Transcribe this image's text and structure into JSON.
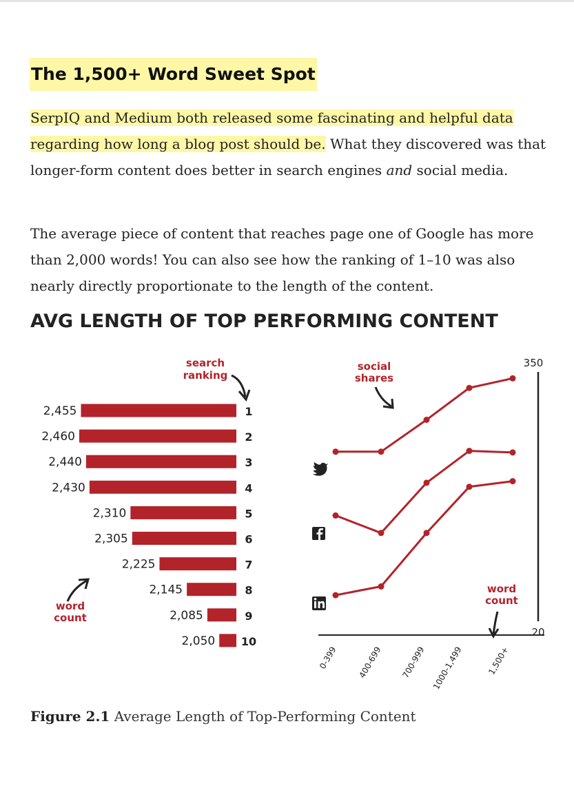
{
  "article": {
    "heading": "The 1,500+ Word Sweet Spot",
    "p1_highlight": "SerpIQ and Medium both released some fascinating and helpful data regarding how long a blog post should be.",
    "p1_rest_a": " What they discovered was that longer-form content does better in search engines ",
    "p1_em": "and",
    "p1_rest_b": " social media.",
    "p2": "The average piece of content that reaches page one of Google has more than 2,000 words! You can also see how the ranking of 1–10 was also nearly directly proportionate to the length of the content."
  },
  "figure": {
    "caption_label": "Figure 2.1",
    "caption_text": "Average Length of Top-Performing Content"
  },
  "chart_data": [
    {
      "type": "bar",
      "title": "AVG LENGTH OF TOP PERFORMING CONTENT",
      "annotations": {
        "search_ranking": [
          "search",
          "ranking"
        ],
        "word_count": [
          "word",
          "count"
        ]
      },
      "categories": [
        "1",
        "2",
        "3",
        "4",
        "5",
        "6",
        "7",
        "8",
        "9",
        "10"
      ],
      "values": [
        2455,
        2460,
        2440,
        2430,
        2310,
        2305,
        2225,
        2145,
        2085,
        2050
      ],
      "value_labels": [
        "2,455",
        "2,460",
        "2,440",
        "2,430",
        "2,310",
        "2,305",
        "2,225",
        "2,145",
        "2,085",
        "2,050"
      ],
      "orientation": "horizontal",
      "color": "#b3232a"
    },
    {
      "type": "line",
      "categories": [
        "0-399",
        "400-699",
        "700-999",
        "1000-1,499",
        "1,500+"
      ],
      "series": [
        {
          "name": "twitter-icon",
          "values": [
            250,
            250,
            290,
            330,
            342
          ]
        },
        {
          "name": "facebook-icon",
          "values": [
            170,
            148,
            211,
            251,
            249
          ]
        },
        {
          "name": "linkedin-icon",
          "values": [
            70,
            81,
            148,
            206,
            213
          ]
        }
      ],
      "annotations": {
        "social_shares": [
          "social",
          "shares"
        ],
        "word_count": [
          "word",
          "count"
        ]
      },
      "ytick_top": "350",
      "ytick_bottom": "20",
      "ylim": [
        20,
        350
      ],
      "color": "#b3232a"
    }
  ]
}
